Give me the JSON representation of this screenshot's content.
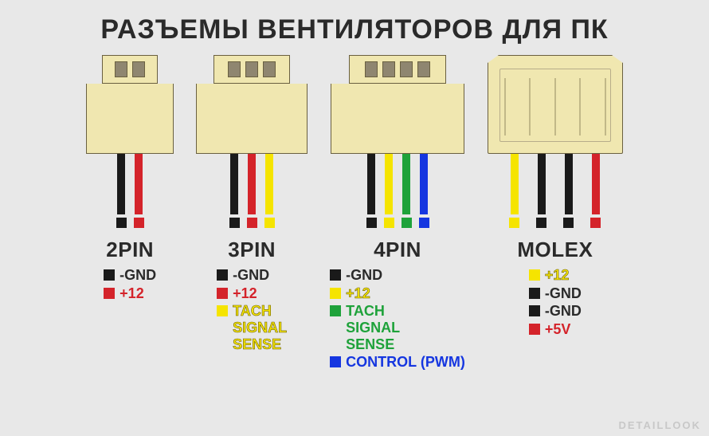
{
  "title": "РАЗЪЕМЫ ВЕНТИЛЯТОРОВ ДЛЯ ПК",
  "watermark": "DETAILLOOK",
  "colors": {
    "body": "#f0e7b0",
    "black": "#1a1a1a",
    "red": "#d4232a",
    "yellow": "#f5e400",
    "green": "#1ea23a",
    "blue": "#1536e0",
    "yellow_text_stroke": "#6a5f00"
  },
  "connectors": [
    {
      "key": "2pin",
      "label": "2PIN",
      "header_top_w": 70,
      "body_w": 110,
      "pins": [
        {
          "color": "black"
        },
        {
          "color": "red"
        }
      ],
      "legend": [
        {
          "color": "black",
          "text": "-GND",
          "textColor": "#2a2a2a"
        },
        {
          "color": "red",
          "text": "+12",
          "textColor": "red"
        }
      ]
    },
    {
      "key": "3pin",
      "label": "3PIN",
      "header_top_w": 96,
      "body_w": 140,
      "pins": [
        {
          "color": "black"
        },
        {
          "color": "red"
        },
        {
          "color": "yellow"
        }
      ],
      "legend": [
        {
          "color": "black",
          "text": "-GND",
          "textColor": "#2a2a2a"
        },
        {
          "color": "red",
          "text": "+12",
          "textColor": "red"
        },
        {
          "color": "yellow",
          "text": [
            "TACH",
            "SIGNAL",
            "SENSE"
          ],
          "textColor": "yellow",
          "stroke": true
        }
      ]
    },
    {
      "key": "4pin",
      "label": "4PIN",
      "header_top_w": 122,
      "body_w": 168,
      "pins": [
        {
          "color": "black"
        },
        {
          "color": "yellow"
        },
        {
          "color": "green"
        },
        {
          "color": "blue"
        }
      ],
      "legend": [
        {
          "color": "black",
          "text": "-GND",
          "textColor": "#2a2a2a"
        },
        {
          "color": "yellow",
          "text": "+12",
          "textColor": "yellow",
          "stroke": true
        },
        {
          "color": "green",
          "text": [
            "TACH",
            "SIGNAL",
            "SENSE"
          ],
          "textColor": "green"
        },
        {
          "color": "blue",
          "text": "CONTROL (PWM)",
          "textColor": "blue"
        }
      ]
    },
    {
      "key": "molex",
      "label": "MOLEX",
      "type": "molex",
      "pins": [
        {
          "color": "yellow"
        },
        {
          "color": "black"
        },
        {
          "color": "black"
        },
        {
          "color": "red"
        }
      ],
      "legend": [
        {
          "color": "yellow",
          "text": "+12",
          "textColor": "yellow",
          "stroke": true
        },
        {
          "color": "black",
          "text": "-GND",
          "textColor": "#2a2a2a"
        },
        {
          "color": "black",
          "text": "-GND",
          "textColor": "#2a2a2a"
        },
        {
          "color": "red",
          "text": "+5V",
          "textColor": "red"
        }
      ]
    }
  ]
}
